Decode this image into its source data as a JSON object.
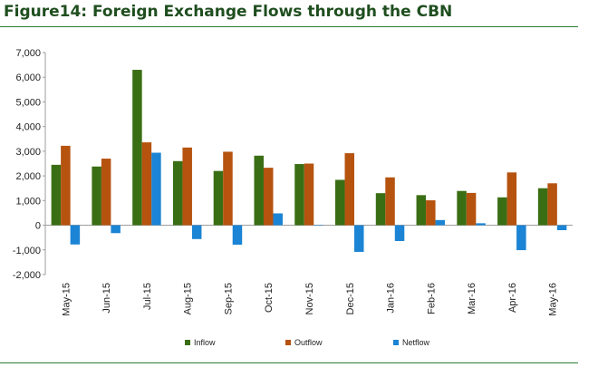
{
  "title": "Figure14: Foreign Exchange Flows through the CBN",
  "chart_data": {
    "type": "bar",
    "categories": [
      "May-15",
      "Jun-15",
      "Jul-15",
      "Aug-15",
      "Sep-15",
      "Oct-15",
      "Nov-15",
      "Dec-15",
      "Jan-16",
      "Feb-16",
      "Mar-16",
      "Apr-16",
      "May-16"
    ],
    "series": [
      {
        "name": "Inflow",
        "color": "#3a6e14",
        "values": [
          2450,
          2380,
          6300,
          2600,
          2200,
          2820,
          2480,
          1840,
          1300,
          1220,
          1390,
          1130,
          1500
        ]
      },
      {
        "name": "Outflow",
        "color": "#b5530f",
        "values": [
          3220,
          2700,
          3360,
          3150,
          2980,
          2330,
          2500,
          2920,
          1940,
          1010,
          1310,
          2140,
          1700
        ]
      },
      {
        "name": "Netflow",
        "color": "#1b84d4",
        "values": [
          -780,
          -320,
          2940,
          -560,
          -790,
          480,
          -20,
          -1080,
          -640,
          210,
          80,
          -1010,
          -200
        ]
      }
    ],
    "ylim": [
      -2000,
      7000
    ],
    "yticks": [
      "-2,000",
      "-1,000",
      "0",
      "1,000",
      "2,000",
      "3,000",
      "4,000",
      "5,000",
      "6,000",
      "7,000"
    ],
    "ytick_values": [
      -2000,
      -1000,
      0,
      1000,
      2000,
      3000,
      4000,
      5000,
      6000,
      7000
    ],
    "legend_position": "bottom",
    "grid": false
  }
}
